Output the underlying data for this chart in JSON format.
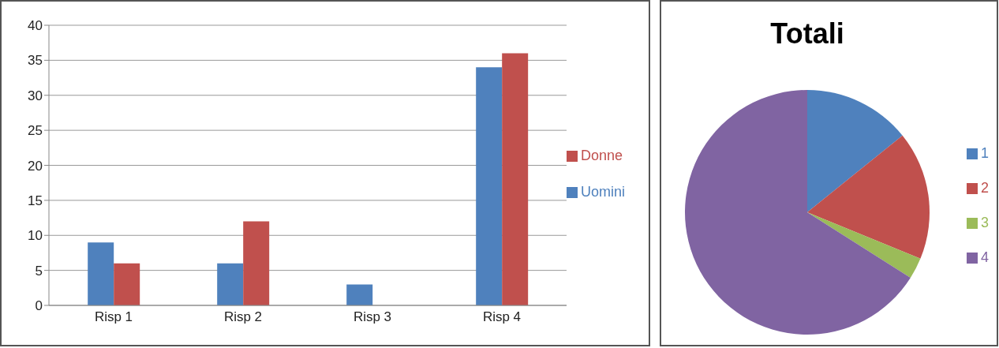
{
  "chart_data": [
    {
      "type": "bar",
      "categories": [
        "Risp 1",
        "Risp 2",
        "Risp 3",
        "Risp 4"
      ],
      "series": [
        {
          "name": "Uomini",
          "color": "#4f81bd",
          "values": [
            9,
            6,
            3,
            34
          ]
        },
        {
          "name": "Donne",
          "color": "#c0504d",
          "values": [
            6,
            12,
            0,
            36
          ]
        }
      ],
      "ylim": [
        0,
        40
      ],
      "yticks": [
        0,
        5,
        10,
        15,
        20,
        25,
        30,
        35,
        40
      ],
      "grid": "y",
      "legend": "right"
    },
    {
      "type": "pie",
      "title": "Totali",
      "categories": [
        "1",
        "2",
        "3",
        "4"
      ],
      "values": [
        14.2,
        17.0,
        2.8,
        66.0
      ],
      "colors": [
        "#4f81bd",
        "#c0504d",
        "#9bbb59",
        "#8064a2"
      ],
      "legend": "right"
    }
  ]
}
